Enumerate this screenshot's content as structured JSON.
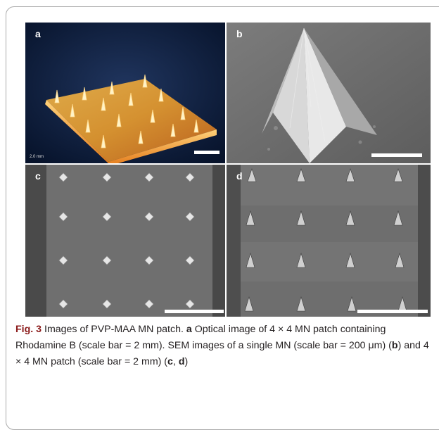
{
  "panels": {
    "a": {
      "label": "a",
      "scale_text": "2.0 mm"
    },
    "b": {
      "label": "b"
    },
    "c": {
      "label": "c"
    },
    "d": {
      "label": "d"
    }
  },
  "caption": {
    "fig_label": "Fig. 3",
    "t1": "  Images of PVP-MAA MN patch. ",
    "b_a": "a",
    "t2": " Optical image of 4 × 4 MN patch containing Rhodamine B (scale bar = 2 mm). SEM images of a single MN (scale bar = 200 μm) (",
    "b_b": "b",
    "t3": ") and 4 × 4 MN patch (scale bar = 2 mm) (",
    "b_c": "c",
    "t4": ", ",
    "b_d": "d",
    "t5": ")"
  },
  "colors": {
    "fig_label": "#8b1a1a",
    "optical_bg": "#0b1b3d",
    "patch_glow": "#f7a21e",
    "sem_bg": "#6f6f6f"
  }
}
